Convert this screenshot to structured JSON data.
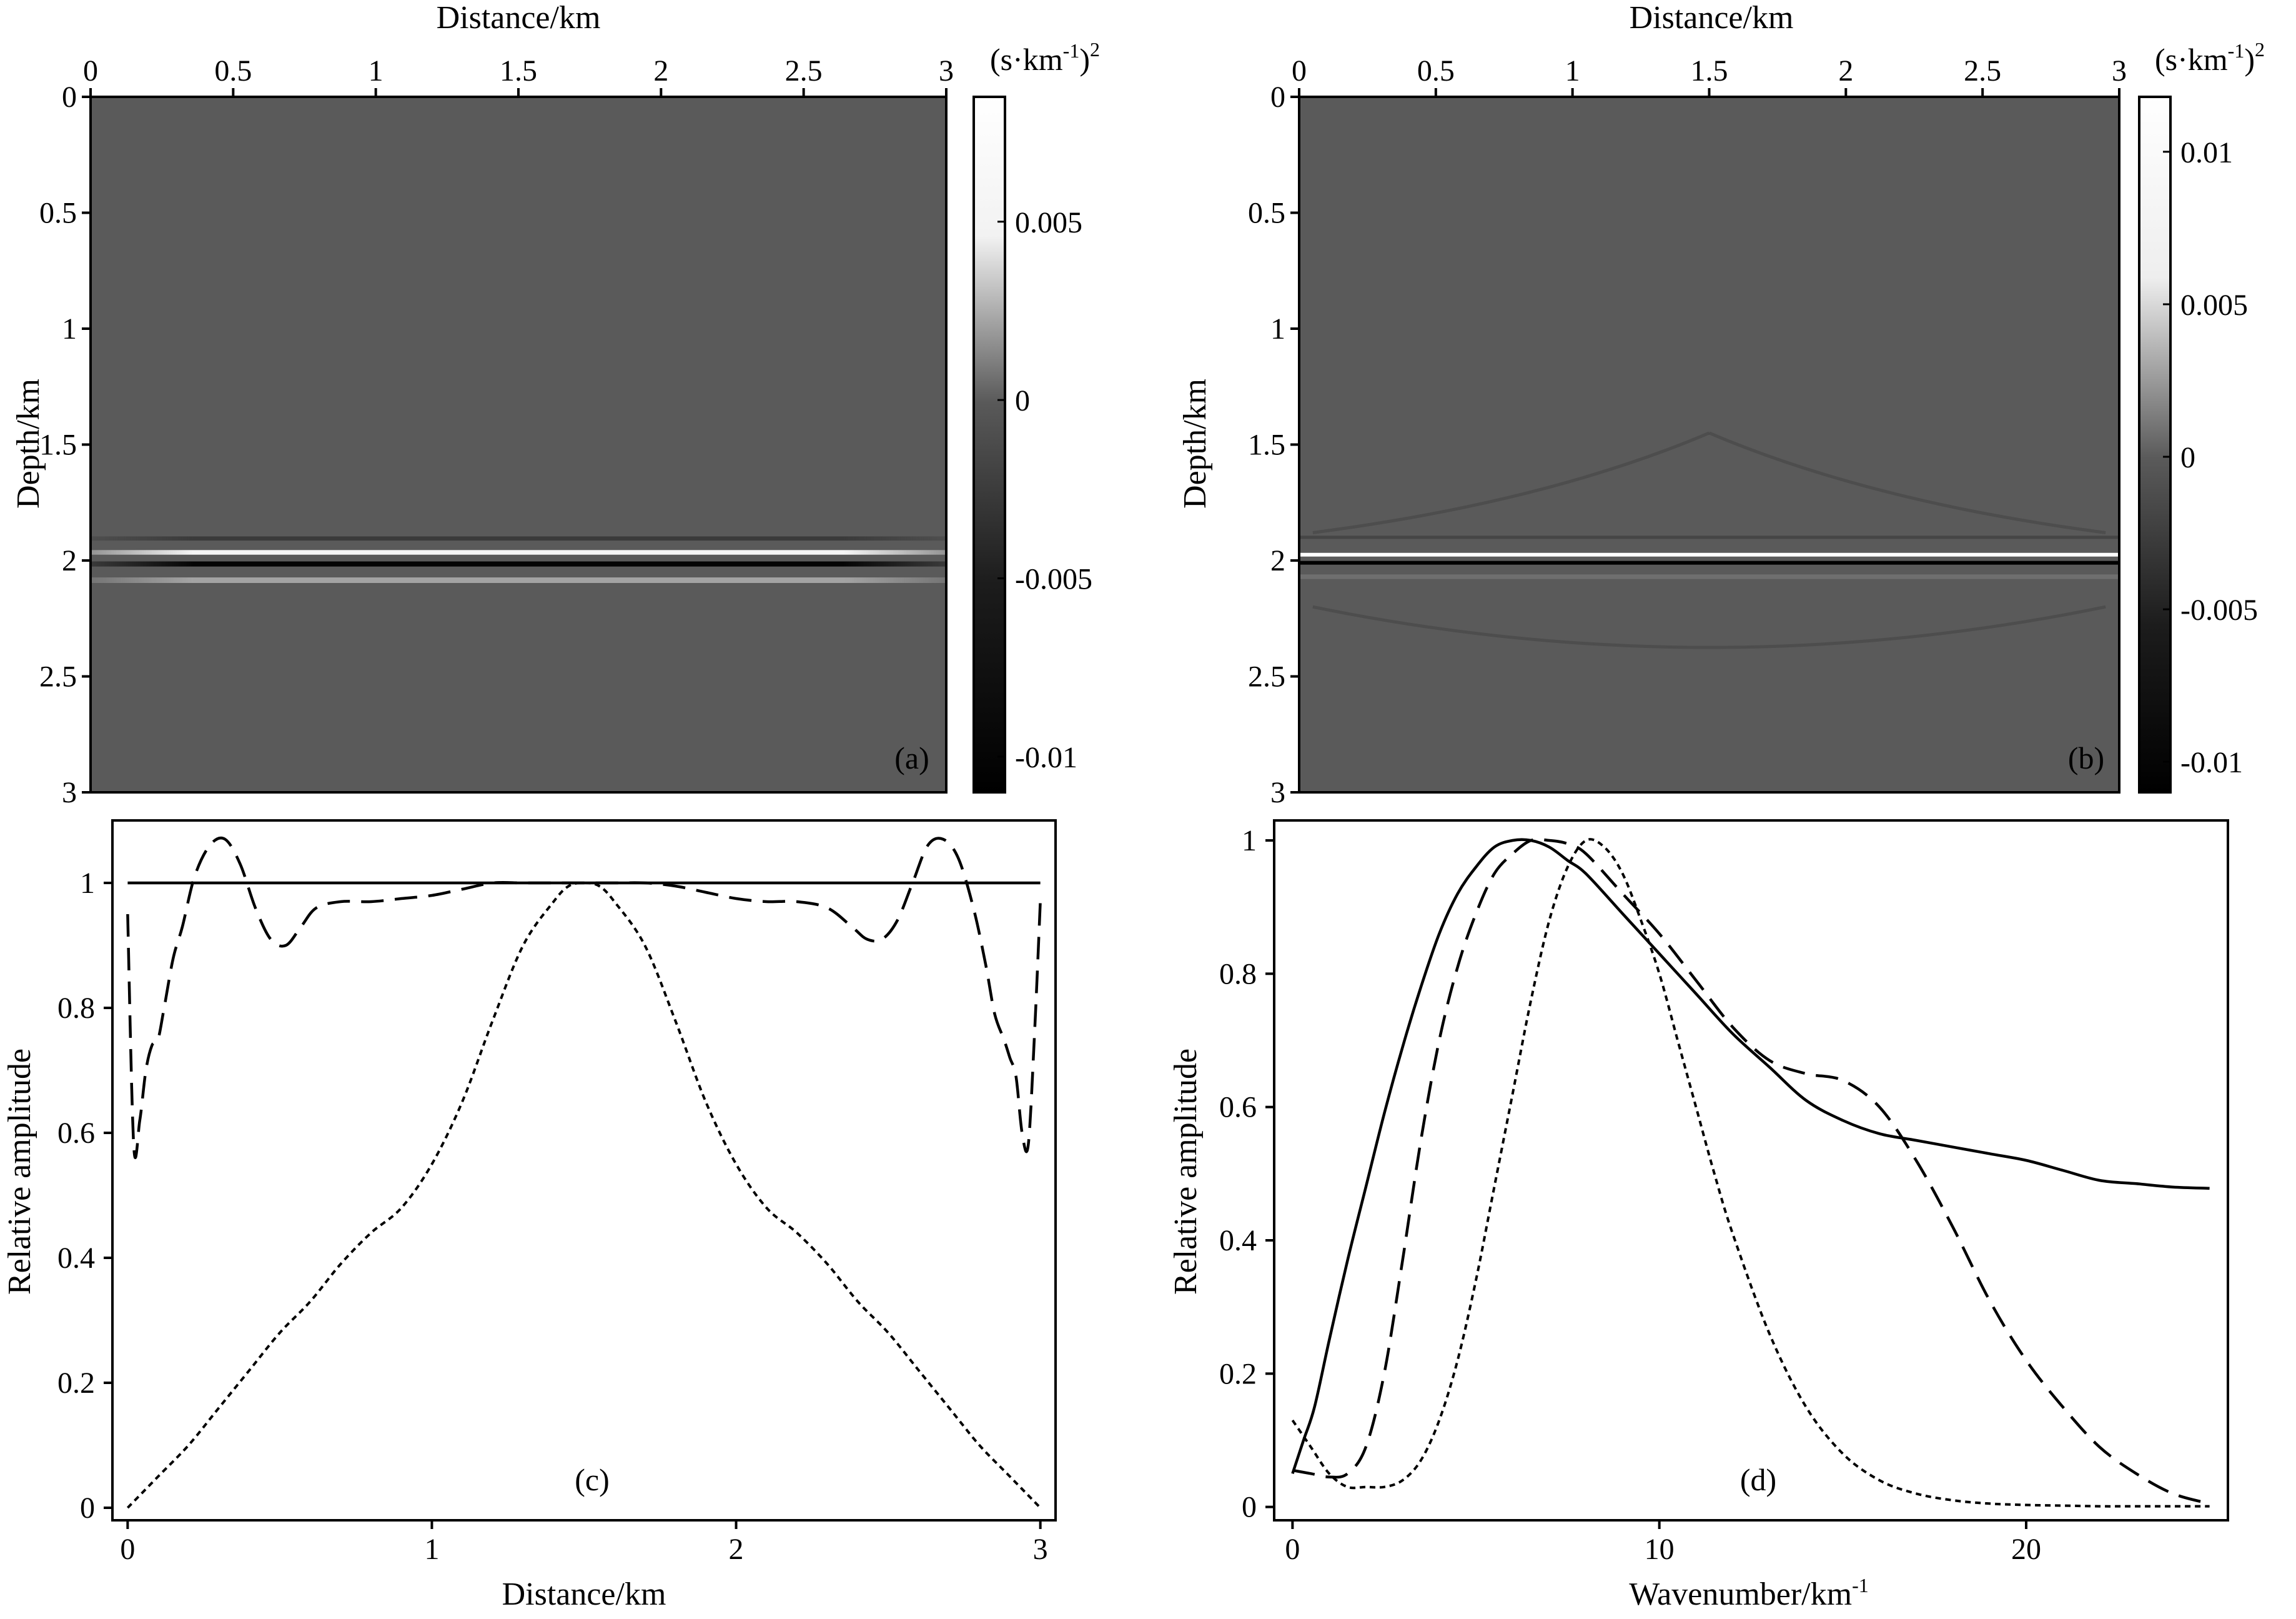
{
  "figure": {
    "panels": {
      "a": {
        "label": "(a)",
        "xlabel": "Distance/km",
        "ylabel": "Depth/km",
        "xticks": [
          "0",
          "0.5",
          "1",
          "1.5",
          "2",
          "2.5",
          "3"
        ],
        "yticks": [
          "0",
          "0.5",
          "1",
          "1.5",
          "2",
          "2.5",
          "3"
        ],
        "colorbar_unit": "(s·km",
        "colorbar_unit_exp": "-1",
        "colorbar_unit_close": ")",
        "colorbar_unit_pow": "2",
        "colorbar_ticks": [
          "0.005",
          "0",
          "-0.005",
          "-0.01"
        ]
      },
      "b": {
        "label": "(b)",
        "xlabel": "Distance/km",
        "ylabel": "Depth/km",
        "xticks": [
          "0",
          "0.5",
          "1",
          "1.5",
          "2",
          "2.5",
          "3"
        ],
        "yticks": [
          "0",
          "0.5",
          "1",
          "1.5",
          "2",
          "2.5",
          "3"
        ],
        "colorbar_unit": "(s·km",
        "colorbar_unit_exp": "-1",
        "colorbar_unit_close": ")",
        "colorbar_unit_pow": "2",
        "colorbar_ticks": [
          "0.01",
          "0.005",
          "0",
          "-0.005",
          "-0.01"
        ]
      },
      "c": {
        "label": "(c)",
        "xlabel": "Distance/km",
        "ylabel": "Relative amplitude",
        "xticks": [
          "0",
          "1",
          "2",
          "3"
        ],
        "yticks": [
          "0",
          "0.2",
          "0.4",
          "0.6",
          "0.8",
          "1"
        ]
      },
      "d": {
        "label": "(d)",
        "xlabel": "Wavenumber/km",
        "xlabel_exp": "-1",
        "ylabel": "Relative amplitude",
        "xticks": [
          "0",
          "10",
          "20"
        ],
        "yticks": [
          "0",
          "0.2",
          "0.4",
          "0.6",
          "0.8",
          "1"
        ]
      }
    }
  },
  "chart_data": [
    {
      "panel": "a",
      "type": "heatmap",
      "xlabel": "Distance/km",
      "ylabel": "Depth/km",
      "xlim": [
        0,
        3
      ],
      "ylim": [
        3,
        0
      ],
      "colormap": "gray",
      "clim": [
        -0.011,
        0.0085
      ],
      "colorbar_label": "(s·km-1)2",
      "features": [
        {
          "depth": 1.905,
          "amplitude": -0.004,
          "width": 0.018
        },
        {
          "depth": 1.965,
          "amplitude": 0.009,
          "width": 0.02
        },
        {
          "depth": 2.015,
          "amplitude": -0.011,
          "width": 0.022
        },
        {
          "depth": 2.085,
          "amplitude": 0.004,
          "width": 0.024
        }
      ]
    },
    {
      "panel": "b",
      "type": "heatmap",
      "xlabel": "Distance/km",
      "ylabel": "Depth/km",
      "xlim": [
        0,
        3
      ],
      "ylim": [
        3,
        0
      ],
      "colormap": "gray",
      "clim": [
        -0.011,
        0.0118
      ],
      "colorbar_label": "(s·km-1)2",
      "features": [
        {
          "depth": 1.9,
          "amplitude": -0.0025,
          "width": 0.014
        },
        {
          "depth": 1.975,
          "amplitude": 0.0118,
          "width": 0.016
        },
        {
          "depth": 2.01,
          "amplitude": -0.011,
          "width": 0.016
        },
        {
          "depth": 2.07,
          "amplitude": 0.0015,
          "width": 0.02
        }
      ]
    },
    {
      "panel": "c",
      "type": "line",
      "xlabel": "Distance/km",
      "ylabel": "Relative amplitude",
      "xlim": [
        -0.05,
        3.05
      ],
      "ylim": [
        -0.02,
        1.1
      ],
      "series": [
        {
          "style": "solid",
          "x": [
            0,
            3
          ],
          "y": [
            1,
            1
          ]
        },
        {
          "style": "dashed",
          "x": [
            0.0,
            0.02,
            0.04,
            0.06,
            0.08,
            0.1,
            0.12,
            0.15,
            0.18,
            0.22,
            0.27,
            0.32,
            0.37,
            0.42,
            0.47,
            0.52,
            0.57,
            0.62,
            0.7,
            0.8,
            0.9,
            1.0,
            1.1,
            1.2,
            1.3,
            1.4,
            1.5,
            1.6,
            1.7,
            1.8,
            1.9,
            2.0,
            2.1,
            2.2,
            2.3,
            2.38,
            2.43,
            2.48,
            2.53,
            2.58,
            2.63,
            2.68,
            2.73,
            2.78,
            2.82,
            2.85,
            2.88,
            2.9,
            2.92,
            2.94,
            2.96,
            2.98,
            3.0
          ],
          "y": [
            0.95,
            0.58,
            0.62,
            0.7,
            0.74,
            0.75,
            0.8,
            0.88,
            0.93,
            1.01,
            1.06,
            1.07,
            1.03,
            0.96,
            0.91,
            0.9,
            0.93,
            0.96,
            0.97,
            0.97,
            0.975,
            0.98,
            0.99,
            1.0,
            1.0,
            1.0,
            1.0,
            1.0,
            1.0,
            0.995,
            0.985,
            0.975,
            0.97,
            0.97,
            0.96,
            0.93,
            0.91,
            0.91,
            0.94,
            1.0,
            1.06,
            1.07,
            1.04,
            0.96,
            0.87,
            0.79,
            0.75,
            0.72,
            0.69,
            0.6,
            0.58,
            0.75,
            0.97
          ]
        },
        {
          "style": "dotted",
          "x": [
            0.0,
            0.1,
            0.2,
            0.3,
            0.4,
            0.5,
            0.6,
            0.7,
            0.8,
            0.9,
            1.0,
            1.1,
            1.2,
            1.3,
            1.4,
            1.45,
            1.5,
            1.55,
            1.6,
            1.7,
            1.8,
            1.9,
            2.0,
            2.1,
            2.2,
            2.3,
            2.4,
            2.5,
            2.6,
            2.7,
            2.8,
            2.9,
            3.0
          ],
          "y": [
            0.0,
            0.05,
            0.1,
            0.16,
            0.22,
            0.28,
            0.33,
            0.39,
            0.44,
            0.48,
            0.55,
            0.65,
            0.78,
            0.9,
            0.97,
            0.995,
            1.0,
            0.995,
            0.97,
            0.9,
            0.78,
            0.65,
            0.55,
            0.48,
            0.44,
            0.39,
            0.33,
            0.28,
            0.22,
            0.16,
            0.1,
            0.05,
            0.0
          ]
        }
      ]
    },
    {
      "panel": "d",
      "type": "line",
      "xlabel": "Wavenumber/km-1",
      "ylabel": "Relative amplitude",
      "xlim": [
        -0.5,
        25.5
      ],
      "ylim": [
        -0.02,
        1.03
      ],
      "series": [
        {
          "style": "solid",
          "x": [
            0.0,
            0.3,
            0.6,
            1.0,
            1.5,
            2.0,
            2.5,
            3.0,
            3.5,
            4.0,
            4.5,
            5.0,
            5.5,
            6.0,
            6.5,
            7.0,
            7.5,
            8.0,
            9.0,
            10.0,
            11.0,
            12.0,
            13.0,
            14.0,
            15.0,
            16.0,
            17.0,
            18.0,
            19.0,
            20.0,
            21.0,
            22.0,
            23.0,
            24.0,
            25.0
          ],
          "y": [
            0.05,
            0.1,
            0.15,
            0.25,
            0.37,
            0.48,
            0.59,
            0.69,
            0.78,
            0.86,
            0.92,
            0.96,
            0.99,
            1.0,
            1.0,
            0.99,
            0.97,
            0.95,
            0.89,
            0.83,
            0.77,
            0.71,
            0.66,
            0.61,
            0.58,
            0.56,
            0.55,
            0.54,
            0.53,
            0.52,
            0.505,
            0.49,
            0.485,
            0.48,
            0.478
          ]
        },
        {
          "style": "dashed",
          "x": [
            0.0,
            0.5,
            1.0,
            1.5,
            2.0,
            2.5,
            3.0,
            3.5,
            4.0,
            4.5,
            5.0,
            5.5,
            6.0,
            6.5,
            7.0,
            7.5,
            8.0,
            9.0,
            10.0,
            11.0,
            12.0,
            13.0,
            14.0,
            15.0,
            16.0,
            17.0,
            18.0,
            19.0,
            20.0,
            21.0,
            22.0,
            23.0,
            24.0,
            25.0
          ],
          "y": [
            0.055,
            0.05,
            0.045,
            0.05,
            0.09,
            0.2,
            0.37,
            0.55,
            0.7,
            0.81,
            0.89,
            0.95,
            0.98,
            1.0,
            1.0,
            0.995,
            0.98,
            0.92,
            0.86,
            0.79,
            0.72,
            0.67,
            0.65,
            0.64,
            0.6,
            0.52,
            0.42,
            0.31,
            0.22,
            0.15,
            0.09,
            0.05,
            0.02,
            0.005
          ]
        },
        {
          "style": "dotted",
          "x": [
            0.0,
            0.5,
            1.0,
            1.5,
            2.0,
            2.5,
            3.0,
            3.5,
            4.0,
            4.5,
            5.0,
            5.5,
            6.0,
            6.5,
            7.0,
            7.5,
            8.0,
            8.5,
            9.0,
            9.5,
            10.0,
            10.5,
            11.0,
            11.5,
            12.0,
            13.0,
            14.0,
            15.0,
            16.0,
            17.0,
            18.0,
            19.0,
            20.0,
            21.0,
            22.0,
            23.0,
            24.0,
            25.0
          ],
          "y": [
            0.13,
            0.09,
            0.05,
            0.03,
            0.03,
            0.03,
            0.04,
            0.07,
            0.13,
            0.22,
            0.34,
            0.48,
            0.62,
            0.76,
            0.88,
            0.96,
            1.0,
            0.99,
            0.95,
            0.88,
            0.8,
            0.7,
            0.6,
            0.5,
            0.41,
            0.26,
            0.15,
            0.08,
            0.04,
            0.02,
            0.01,
            0.005,
            0.003,
            0.002,
            0.001,
            0.001,
            0.001,
            0.001
          ]
        }
      ]
    }
  ]
}
